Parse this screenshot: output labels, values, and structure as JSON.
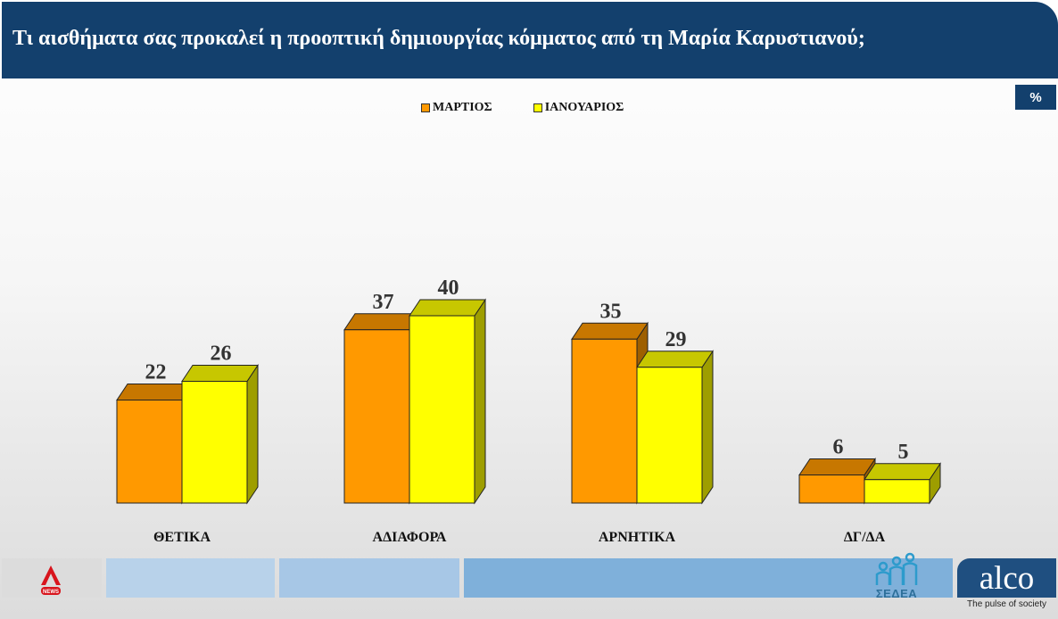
{
  "header": {
    "title": "Τι αισθήματα σας προκαλεί η προοπτική δημιουργίας κόμματος από τη Μαρία Καρυστιανού;"
  },
  "unit_badge": "%",
  "colors": {
    "header_bg": "#13406d",
    "series_march": "#ff9900",
    "series_january": "#ffff00"
  },
  "footer": {
    "alpha_logo": "ALPHA NEWS",
    "sedea_logo": "ΣΕΔΕΑ",
    "alco_logo": "alco",
    "alco_tagline": "The pulse of society"
  },
  "chart_data": {
    "type": "bar",
    "categories": [
      "ΘΕΤΙΚΑ",
      "ΑΔΙΑΦΟΡΑ",
      "ΑΡΝΗΤΙΚΑ",
      "ΔΓ/ΔΑ"
    ],
    "series": [
      {
        "name": "ΜΑΡΤΙΟΣ",
        "values": [
          22,
          37,
          35,
          6
        ],
        "color": "#ff9900"
      },
      {
        "name": "ΙΑΝΟΥΑΡΙΟΣ",
        "values": [
          26,
          40,
          29,
          5
        ],
        "color": "#ffff00"
      }
    ],
    "ylim": [
      0,
      40
    ],
    "grid": false,
    "legend": "top",
    "style": "3d"
  }
}
